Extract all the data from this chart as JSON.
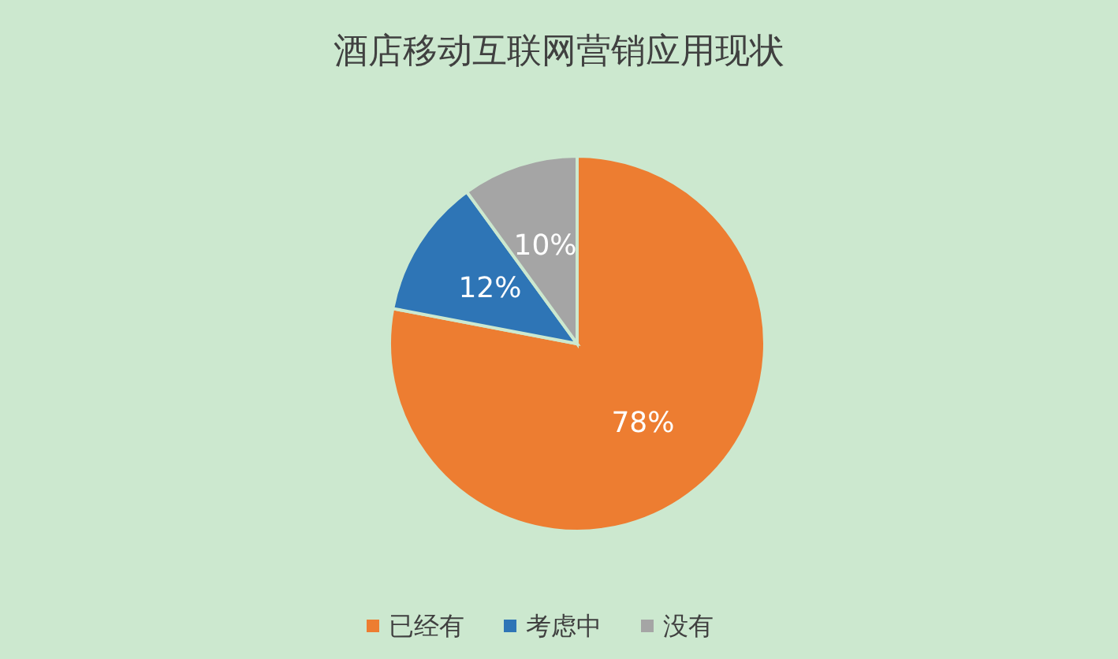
{
  "chart_data": {
    "type": "pie",
    "title": "酒店移动互联网营销应用现状",
    "categories": [
      "已经有",
      "考虑中",
      "没有"
    ],
    "values": [
      78,
      12,
      10
    ],
    "colors": [
      "#ed7d31",
      "#2e75b6",
      "#a5a5a5"
    ],
    "value_labels": [
      "78%",
      "12%",
      "10%"
    ],
    "legend": "bottom"
  }
}
